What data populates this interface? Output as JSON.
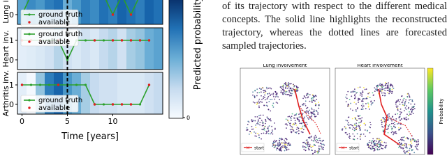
{
  "left_figure": {
    "x_label": "Time [years]",
    "xlim": [
      -0.5,
      15.5
    ],
    "xticks": [
      0,
      5,
      10
    ],
    "times": [
      0,
      1,
      2,
      3,
      4,
      5,
      6,
      7,
      8,
      9,
      10,
      11,
      12,
      13,
      14,
      15
    ],
    "marker_time": 5,
    "legend": {
      "line": "ground truth",
      "points": "available"
    },
    "colorbar": {
      "label": "Predicted probability",
      "ticks": [
        0
      ]
    },
    "panels": [
      {
        "ylabel": "Lung inv.",
        "yticks": [
          0
        ],
        "probability": [
          0.55,
          0.65,
          0.6,
          0.7,
          0.75,
          0.5,
          0.6,
          0.7,
          0.65,
          0.75,
          0.7,
          0.8,
          0.75,
          0.7,
          0.8,
          0.75
        ],
        "ground_truth": [
          0,
          1,
          1,
          1,
          1,
          1,
          1,
          1,
          1,
          1,
          0,
          1,
          0,
          1,
          1,
          null
        ],
        "available_times": [
          3,
          10,
          12
        ]
      },
      {
        "ylabel": "Heart inv.",
        "yticks": [
          0,
          1
        ],
        "probability": [
          0.1,
          0.12,
          0.15,
          0.2,
          0.3,
          0.2,
          0.15,
          0.2,
          0.15,
          0.25,
          0.3,
          0.2,
          0.35,
          0.4,
          0.5,
          0.55
        ],
        "ground_truth": [
          1,
          1,
          1,
          1,
          1,
          0,
          1,
          1,
          1,
          1,
          1,
          1,
          1,
          1,
          1,
          null
        ],
        "available_times": [
          0,
          1,
          2,
          4,
          8,
          10,
          11,
          12,
          13,
          14
        ]
      },
      {
        "ylabel": "Arthritis inv.",
        "yticks": [
          0,
          1
        ],
        "probability": [
          0.1,
          0.02,
          0.4,
          0.7,
          0.8,
          0.6,
          0.5,
          0.35,
          0.25,
          0.2,
          0.2,
          0.15,
          0.15,
          0.15,
          0.2,
          0.25
        ],
        "ground_truth": [
          1,
          1,
          1,
          1,
          1,
          1,
          1,
          1,
          0,
          0,
          0,
          0,
          0,
          0,
          1,
          null
        ],
        "available_times": [
          0,
          4,
          8,
          10,
          11,
          12,
          14
        ]
      }
    ]
  },
  "paragraph": [
    "of its trajectory with respect to the different medical",
    "concepts. The solid line highlights the reconstructed",
    "trajectory, whereas the dotted lines are forecasted",
    "sampled trajectories."
  ],
  "right_figure": {
    "panels": [
      {
        "title": "Lung involvement",
        "legend": "start"
      },
      {
        "title": "Heart involvement",
        "legend": "start"
      }
    ],
    "colorbar_label": "Probability"
  }
}
